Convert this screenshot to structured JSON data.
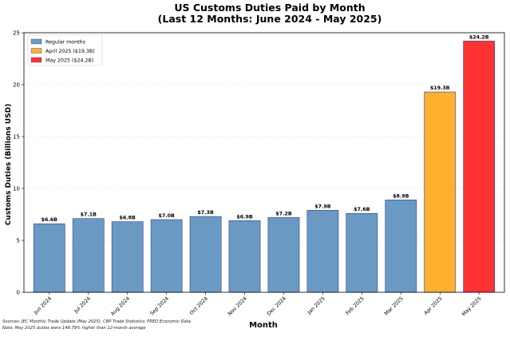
{
  "chart_data": {
    "type": "bar",
    "title": "US Customs Duties Paid by Month",
    "subtitle": "(Last 12 Months: June 2024 - May 2025)",
    "xlabel": "Month",
    "ylabel": "Customs Duties (Billions USD)",
    "ylim": [
      0,
      25
    ],
    "yticks": [
      0,
      5,
      10,
      15,
      20,
      25
    ],
    "grid": true,
    "legend_position": "top-left",
    "categories": [
      "Jun 2024",
      "Jul 2024",
      "Aug 2024",
      "Sep 2024",
      "Oct 2024",
      "Nov 2024",
      "Dec 2024",
      "Jan 2025",
      "Feb 2025",
      "Mar 2025",
      "Apr 2025",
      "May 2025"
    ],
    "values": [
      6.6,
      7.1,
      6.8,
      7.0,
      7.3,
      6.9,
      7.2,
      7.9,
      7.6,
      8.9,
      19.3,
      24.2
    ],
    "value_labels": [
      "$6.6B",
      "$7.1B",
      "$6.8B",
      "$7.0B",
      "$7.3B",
      "$6.9B",
      "$7.2B",
      "$7.9B",
      "$7.6B",
      "$8.9B",
      "$19.3B",
      "$24.2B"
    ],
    "bar_groups": [
      "regular",
      "regular",
      "regular",
      "regular",
      "regular",
      "regular",
      "regular",
      "regular",
      "regular",
      "regular",
      "april",
      "may"
    ],
    "legend": [
      {
        "key": "regular",
        "label": "Regular months",
        "color": "#6a9ac4"
      },
      {
        "key": "april",
        "label": "April 2025 ($19.3B)",
        "color": "#ffb02e"
      },
      {
        "key": "may",
        "label": "May 2025 ($24.2B)",
        "color": "#ff3333"
      }
    ],
    "colors": {
      "regular": "#6a9ac4",
      "april": "#ffb02e",
      "may": "#ff3333",
      "bar_edge": "#2b3f8f"
    },
    "notes": [
      "Sources: JEC Monthly Trade Update (May 2025), CBP Trade Statistics, FRED Economic Data",
      "Note: May 2025 duties were 148.79% higher than 12-month average"
    ]
  }
}
